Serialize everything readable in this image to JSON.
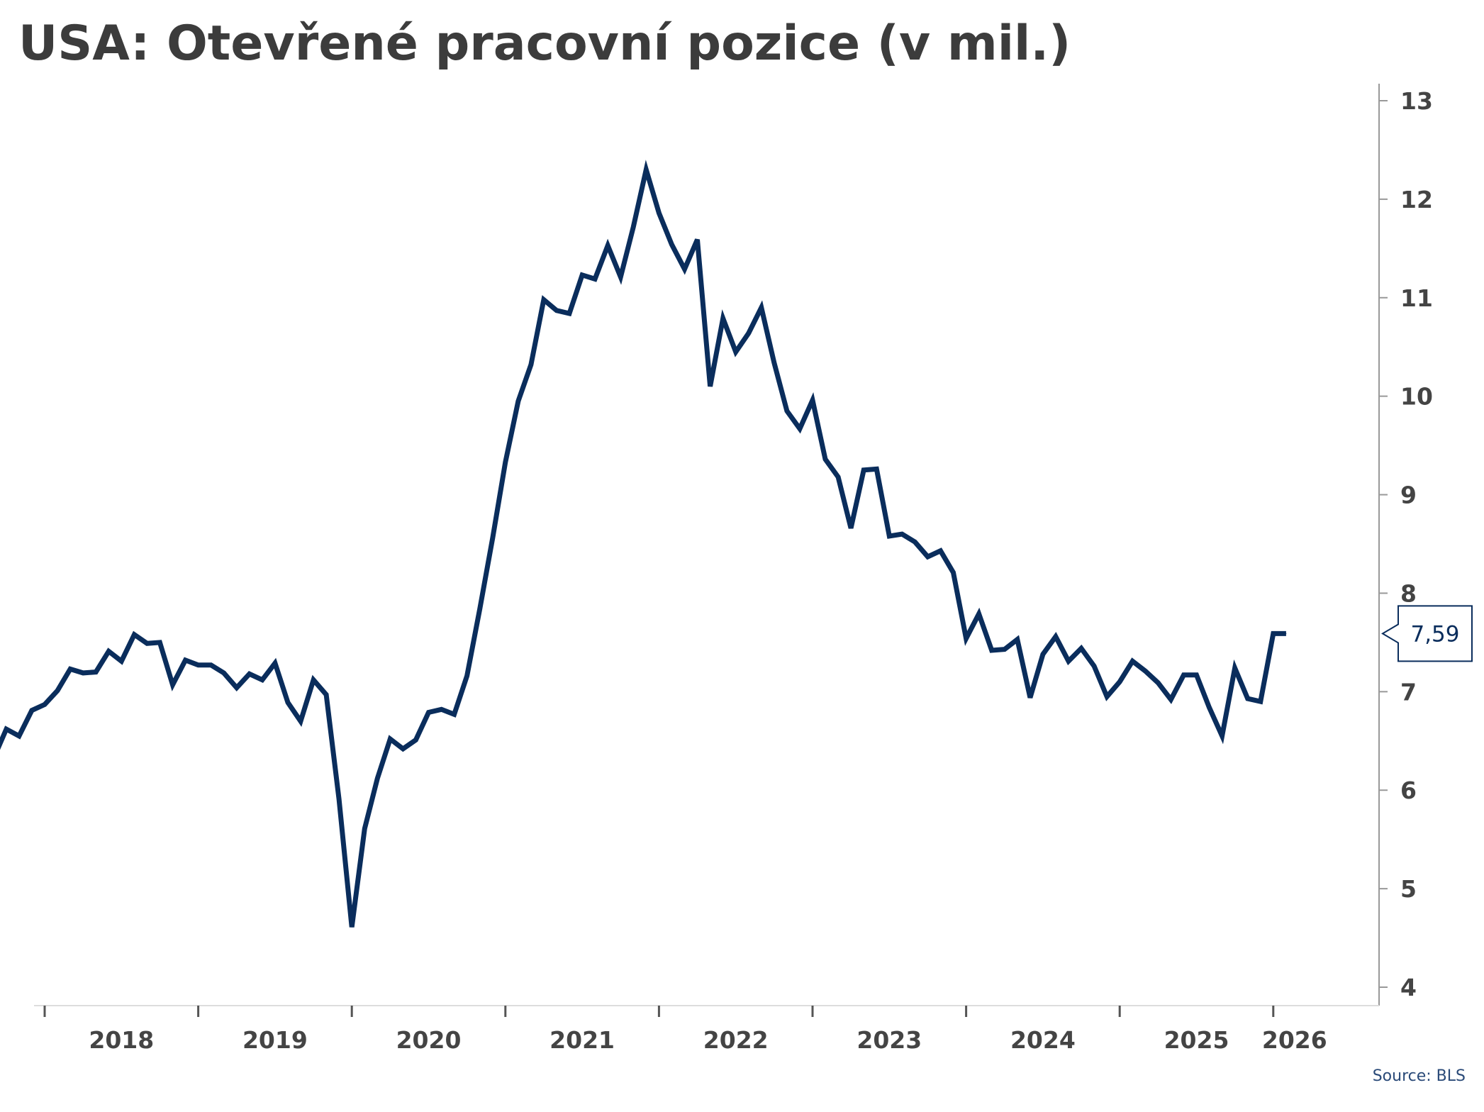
{
  "title": "USA: Otevřené pracovní pozice (v mil.)",
  "source": "Source: BLS",
  "colors": {
    "line": "#0a2d5c",
    "axis": "#999999",
    "text": "#444444",
    "title": "#3c3c3c",
    "source": "#2a4a78"
  },
  "chart_data": {
    "type": "line",
    "title": "USA: Otevřené pracovní pozice (v mil.)",
    "xlabel": "",
    "ylabel": "",
    "ylim": [
      4,
      13
    ],
    "yticks": [
      4,
      5,
      6,
      7,
      8,
      9,
      10,
      11,
      12,
      13
    ],
    "xticks": [
      "2018",
      "2019",
      "2020",
      "2021",
      "2022",
      "2023",
      "2024",
      "2025",
      "2026"
    ],
    "grid": false,
    "legend": "none",
    "last_value_label": "7,59",
    "series": [
      {
        "start": "2017-09",
        "frequency": "monthly",
        "values": [
          6.32,
          6.62,
          6.55,
          6.81,
          6.87,
          7.01,
          7.23,
          7.19,
          7.2,
          7.41,
          7.31,
          7.58,
          7.49,
          7.5,
          7.07,
          7.32,
          7.27,
          7.27,
          7.19,
          7.04,
          7.18,
          7.12,
          7.29,
          6.89,
          6.7,
          7.12,
          6.97,
          5.91,
          4.61,
          5.61,
          6.12,
          6.52,
          6.42,
          6.51,
          6.79,
          6.82,
          6.77,
          7.16,
          7.84,
          8.56,
          9.33,
          9.95,
          10.32,
          10.98,
          10.87,
          10.84,
          11.23,
          11.19,
          11.53,
          11.21,
          11.72,
          12.3,
          11.86,
          11.54,
          11.29,
          11.59,
          10.1,
          10.79,
          10.45,
          10.64,
          10.9,
          10.34,
          9.85,
          9.67,
          9.96,
          9.36,
          9.18,
          8.66,
          9.25,
          9.26,
          8.58,
          8.6,
          8.52,
          8.37,
          8.43,
          8.21,
          7.54,
          7.79,
          7.42,
          7.43,
          7.53,
          6.94,
          7.38,
          7.56,
          7.31,
          7.44,
          7.26,
          6.95,
          7.1,
          7.31,
          7.21,
          7.09,
          6.92,
          7.17,
          7.17,
          6.84,
          6.55,
          7.24,
          6.93,
          6.9,
          7.59,
          7.59
        ]
      }
    ]
  }
}
